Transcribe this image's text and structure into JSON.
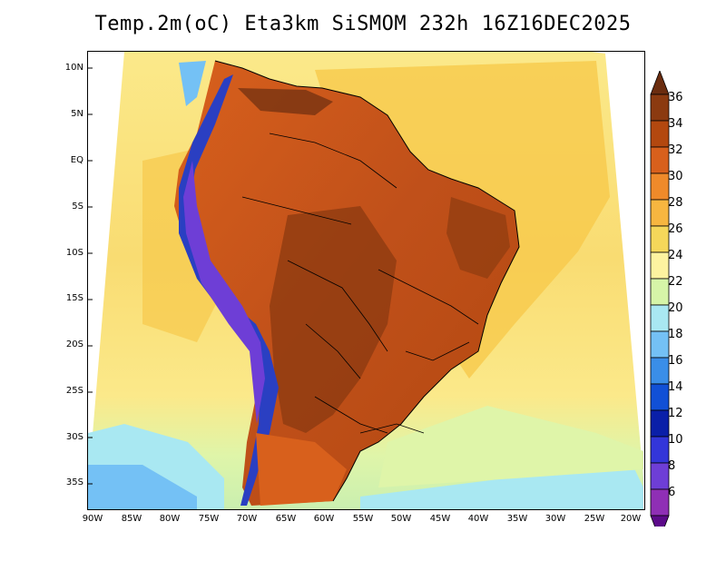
{
  "title": "Temp.2m(oC) Eta3km SiSMOM 232h 16Z16DEC2025",
  "axes": {
    "lat_labels": [
      "10N",
      "5N",
      "EQ",
      "5S",
      "10S",
      "15S",
      "20S",
      "25S",
      "30S",
      "35S"
    ],
    "lon_labels": [
      "90W",
      "85W",
      "80W",
      "75W",
      "70W",
      "65W",
      "60W",
      "55W",
      "50W",
      "45W",
      "40W",
      "35W",
      "30W",
      "25W",
      "20W"
    ]
  },
  "colorbar": {
    "labels": [
      "36",
      "34",
      "32",
      "30",
      "28",
      "26",
      "24",
      "22",
      "20",
      "18",
      "16",
      "14",
      "12",
      "10",
      "8",
      "6"
    ],
    "colors": [
      "#6b2d0f",
      "#8b3a10",
      "#b3480f",
      "#d8601c",
      "#ef8a2a",
      "#f7b640",
      "#f5d75a",
      "#fdf3a0",
      "#d6f5a8",
      "#a9e8f2",
      "#74c1f5",
      "#3a8ee8",
      "#1150d6",
      "#0a1fa8",
      "#3336d9",
      "#6e3ed6",
      "#8f2fb5",
      "#5c0a8a"
    ]
  },
  "colors": {
    "ocean_warm": "#f7c94b",
    "ocean_mid": "#fbe98a",
    "ocean_cool": "#dff5a9",
    "ocean_cold": "#a8dff3",
    "land_hot": "#c0501a",
    "land_mid": "#e07a26",
    "andes_cold": "#2a3fc2"
  }
}
